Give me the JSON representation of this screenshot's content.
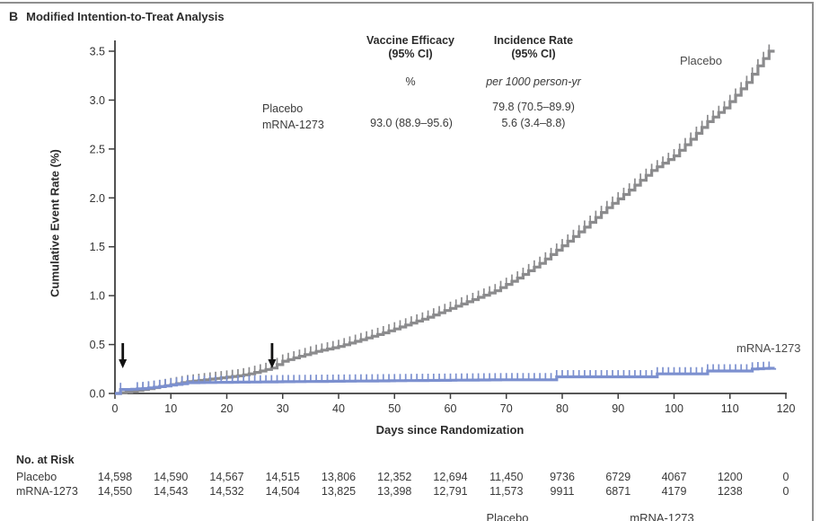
{
  "panel": {
    "label": "B",
    "title": "Modified Intention-to-Treat Analysis"
  },
  "colors": {
    "placebo": "#8b8b8d",
    "mrna": "#7c90cf",
    "axis": "#3f3f3f",
    "arrow": "#111111",
    "border": "#8f8f8f",
    "text": "#2e2e2e"
  },
  "stats_table": {
    "col1_header": "Vaccine Efficacy\n(95% CI)",
    "col2_header": "Incidence Rate\n(95% CI)",
    "col1_unit": "%",
    "col2_unit": "per 1000 person-yr",
    "rows": [
      {
        "label": "Placebo",
        "efficacy": "",
        "incidence": "79.8 (70.5–89.9)"
      },
      {
        "label": "mRNA-1273",
        "efficacy": "93.0 (88.9–95.6)",
        "incidence": "5.6 (3.4–8.8)"
      }
    ]
  },
  "chart_data": {
    "type": "line",
    "subtype": "kaplan-meier-cumulative-incidence-step",
    "title": "Modified Intention-to-Treat Analysis",
    "xlabel": "Days since Randomization",
    "ylabel": "Cumulative Event Rate (%)",
    "xlim": [
      0,
      120
    ],
    "ylim": [
      0,
      3.5
    ],
    "xticks": [
      0,
      10,
      20,
      30,
      40,
      50,
      60,
      70,
      80,
      90,
      100,
      110,
      120
    ],
    "ytick_labels": [
      "0.0",
      "0.5",
      "1.0",
      "1.5",
      "2.0",
      "2.5",
      "3.0",
      "3.5"
    ],
    "grid": false,
    "legend_position": "curve-labels-right",
    "series": [
      {
        "name": "Placebo",
        "label": "Placebo",
        "color": "#8b8b8d",
        "points": {
          "day": [
            0,
            3,
            5,
            8,
            10,
            13,
            16,
            19,
            22,
            24,
            26,
            28,
            30,
            33,
            36,
            40,
            44,
            48,
            52,
            56,
            60,
            64,
            68,
            72,
            76,
            80,
            84,
            88,
            92,
            96,
            100,
            103,
            106,
            109,
            111,
            113,
            115,
            117,
            118
          ],
          "rate": [
            0,
            0.02,
            0.04,
            0.07,
            0.09,
            0.12,
            0.14,
            0.16,
            0.18,
            0.2,
            0.23,
            0.26,
            0.33,
            0.38,
            0.43,
            0.48,
            0.55,
            0.62,
            0.7,
            0.78,
            0.87,
            0.96,
            1.05,
            1.18,
            1.33,
            1.51,
            1.7,
            1.9,
            2.08,
            2.28,
            2.43,
            2.6,
            2.78,
            2.92,
            3.05,
            3.18,
            3.35,
            3.5,
            3.5
          ]
        },
        "censor_days": {
          "start": 5,
          "end": 117,
          "extra": []
        }
      },
      {
        "name": "mRNA-1273",
        "label": "mRNA-1273",
        "color": "#7c90cf",
        "points": {
          "day": [
            0,
            1,
            2,
            5,
            8,
            12,
            13,
            30,
            50,
            70,
            78,
            79,
            96,
            97,
            105,
            106,
            113,
            114,
            118
          ],
          "rate": [
            0,
            0.04,
            0.04,
            0.05,
            0.07,
            0.1,
            0.11,
            0.12,
            0.13,
            0.14,
            0.14,
            0.17,
            0.17,
            0.2,
            0.2,
            0.23,
            0.23,
            0.25,
            0.26
          ]
        },
        "censor_days": {
          "start": 4,
          "end": 117,
          "extra": [
            1
          ]
        }
      }
    ],
    "arrows": [
      {
        "day": 1.4
      },
      {
        "day": 28.1
      }
    ]
  },
  "risk_table": {
    "title": "No. at Risk",
    "days": [
      0,
      10,
      20,
      30,
      40,
      50,
      60,
      70,
      80,
      90,
      100,
      110,
      120
    ],
    "rows": [
      {
        "label": "Placebo",
        "values": [
          "14,598",
          "14,590",
          "14,567",
          "14,515",
          "13,806",
          "12,352",
          "12,694",
          "11,450",
          "9736",
          "6729",
          "4067",
          "1200",
          "0"
        ]
      },
      {
        "label": "mRNA-1273",
        "values": [
          "14,550",
          "14,543",
          "14,532",
          "14,504",
          "13,825",
          "13,398",
          "12,791",
          "11,573",
          "9911",
          "6871",
          "4179",
          "1238",
          "0"
        ]
      }
    ]
  },
  "bottom_legend": {
    "items": [
      {
        "label": "Placebo"
      },
      {
        "label": "mRNA-1273"
      }
    ]
  }
}
